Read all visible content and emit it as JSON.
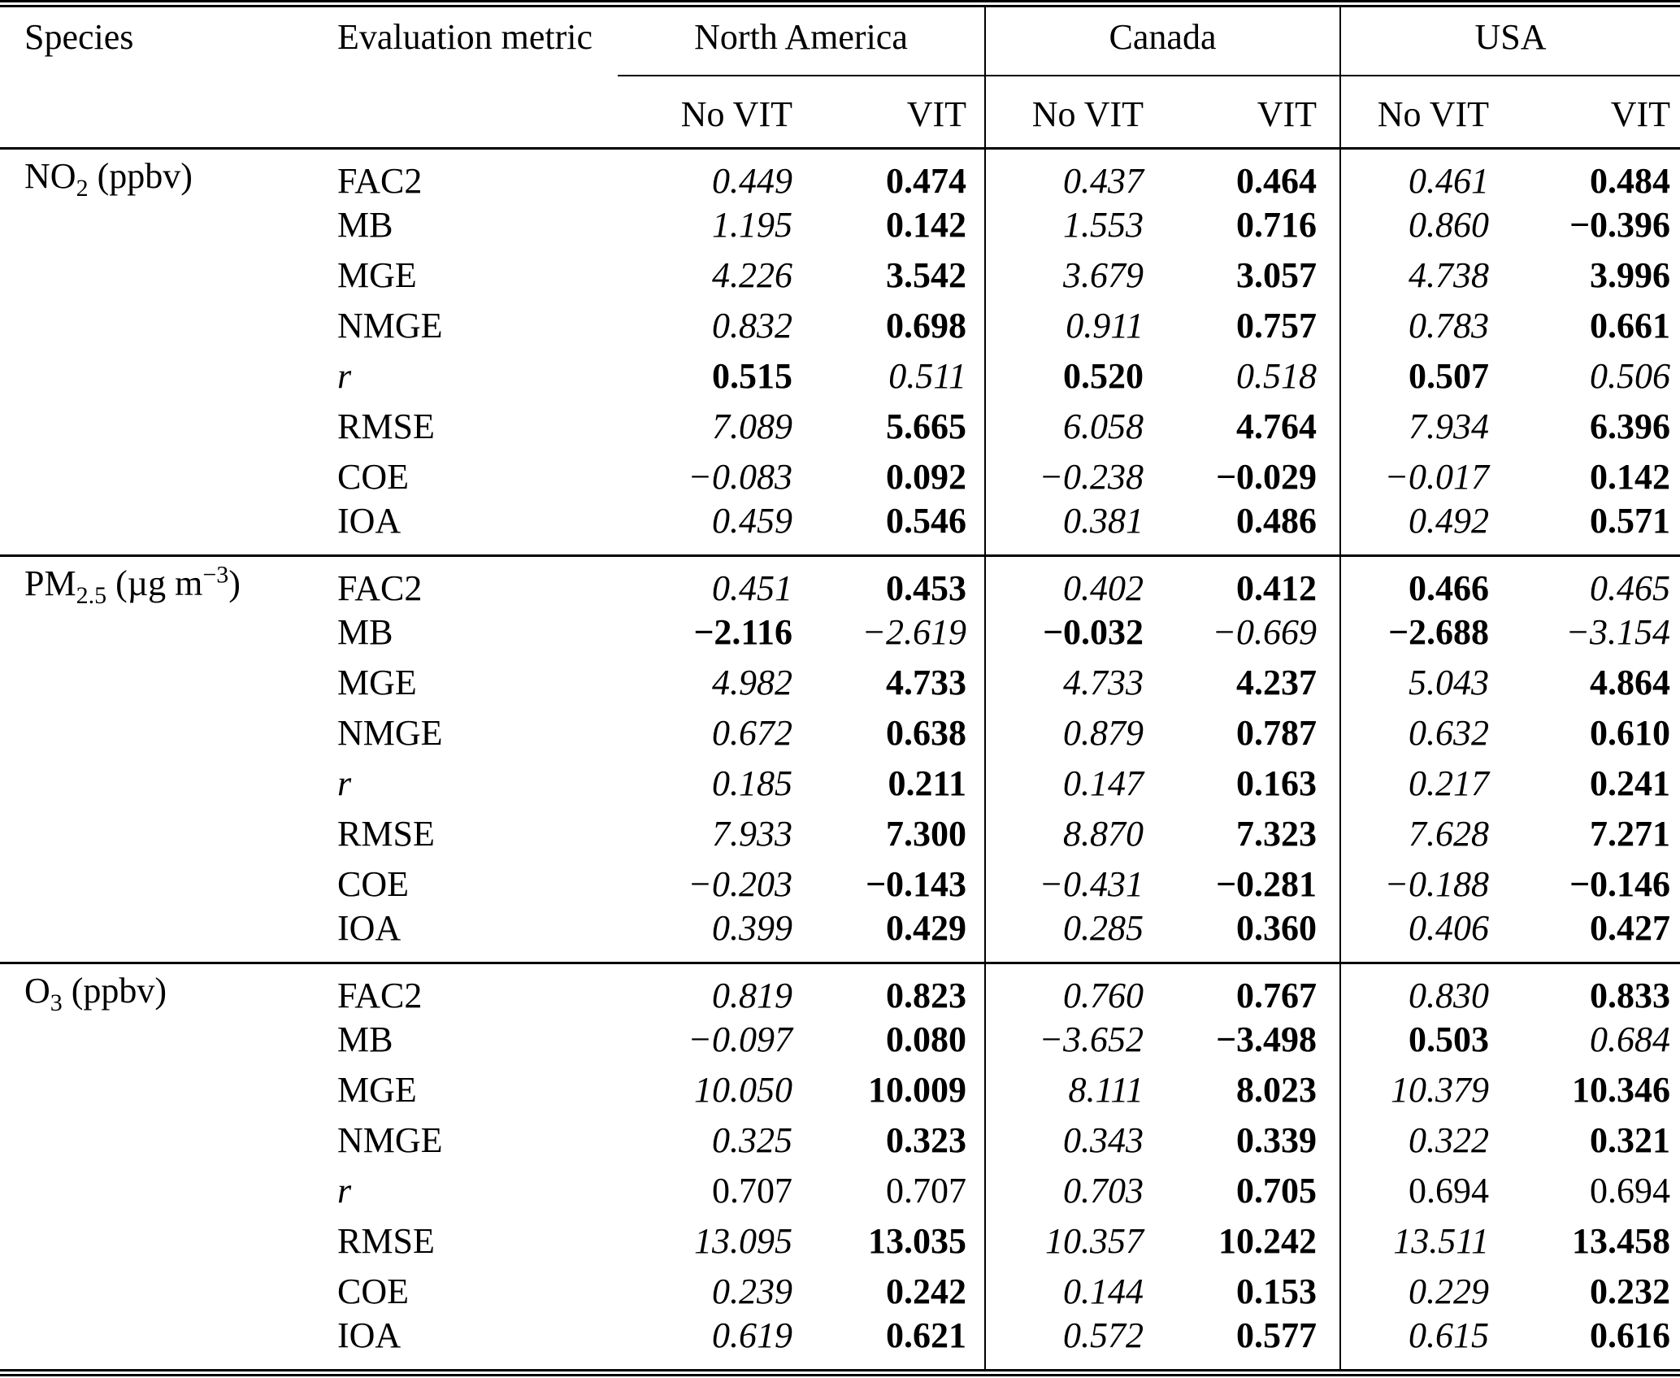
{
  "colors": {
    "text": "#000000",
    "background": "#ffffff"
  },
  "table": {
    "header": {
      "species": "Species",
      "metric": "Evaluation metric"
    },
    "groups": [
      {
        "label": "North America"
      },
      {
        "label": "Canada"
      },
      {
        "label": "USA"
      }
    ],
    "subheaders": {
      "no_vit": "No VIT",
      "vit": "VIT"
    },
    "sections": [
      {
        "species": {
          "base": "NO",
          "sub": "2",
          "unit_pre": " (ppbv)",
          "sup": "",
          "unit_post": ""
        },
        "rows": [
          {
            "metric": "FAC2",
            "metric_style": "n",
            "cells": [
              {
                "v": "0.449",
                "s": "i"
              },
              {
                "v": "0.474",
                "s": "b"
              },
              {
                "v": "0.437",
                "s": "i"
              },
              {
                "v": "0.464",
                "s": "b"
              },
              {
                "v": "0.461",
                "s": "i"
              },
              {
                "v": "0.484",
                "s": "b"
              }
            ]
          },
          {
            "metric": "MB",
            "metric_style": "n",
            "cells": [
              {
                "v": "1.195",
                "s": "i"
              },
              {
                "v": "0.142",
                "s": "b"
              },
              {
                "v": "1.553",
                "s": "i"
              },
              {
                "v": "0.716",
                "s": "b"
              },
              {
                "v": "0.860",
                "s": "i"
              },
              {
                "v": "−0.396",
                "s": "b"
              }
            ]
          },
          {
            "metric": "MGE",
            "metric_style": "n",
            "cells": [
              {
                "v": "4.226",
                "s": "i"
              },
              {
                "v": "3.542",
                "s": "b"
              },
              {
                "v": "3.679",
                "s": "i"
              },
              {
                "v": "3.057",
                "s": "b"
              },
              {
                "v": "4.738",
                "s": "i"
              },
              {
                "v": "3.996",
                "s": "b"
              }
            ]
          },
          {
            "metric": "NMGE",
            "metric_style": "n",
            "cells": [
              {
                "v": "0.832",
                "s": "i"
              },
              {
                "v": "0.698",
                "s": "b"
              },
              {
                "v": "0.911",
                "s": "i"
              },
              {
                "v": "0.757",
                "s": "b"
              },
              {
                "v": "0.783",
                "s": "i"
              },
              {
                "v": "0.661",
                "s": "b"
              }
            ]
          },
          {
            "metric": "r",
            "metric_style": "i",
            "cells": [
              {
                "v": "0.515",
                "s": "b"
              },
              {
                "v": "0.511",
                "s": "i"
              },
              {
                "v": "0.520",
                "s": "b"
              },
              {
                "v": "0.518",
                "s": "i"
              },
              {
                "v": "0.507",
                "s": "b"
              },
              {
                "v": "0.506",
                "s": "i"
              }
            ]
          },
          {
            "metric": "RMSE",
            "metric_style": "n",
            "cells": [
              {
                "v": "7.089",
                "s": "i"
              },
              {
                "v": "5.665",
                "s": "b"
              },
              {
                "v": "6.058",
                "s": "i"
              },
              {
                "v": "4.764",
                "s": "b"
              },
              {
                "v": "7.934",
                "s": "i"
              },
              {
                "v": "6.396",
                "s": "b"
              }
            ]
          },
          {
            "metric": "COE",
            "metric_style": "n",
            "cells": [
              {
                "v": "−0.083",
                "s": "i"
              },
              {
                "v": "0.092",
                "s": "b"
              },
              {
                "v": "−0.238",
                "s": "i"
              },
              {
                "v": "−0.029",
                "s": "b"
              },
              {
                "v": "−0.017",
                "s": "i"
              },
              {
                "v": "0.142",
                "s": "b"
              }
            ]
          },
          {
            "metric": "IOA",
            "metric_style": "n",
            "cells": [
              {
                "v": "0.459",
                "s": "i"
              },
              {
                "v": "0.546",
                "s": "b"
              },
              {
                "v": "0.381",
                "s": "i"
              },
              {
                "v": "0.486",
                "s": "b"
              },
              {
                "v": "0.492",
                "s": "i"
              },
              {
                "v": "0.571",
                "s": "b"
              }
            ]
          }
        ]
      },
      {
        "species": {
          "base": "PM",
          "sub": "2.5",
          "unit_pre": " (µg m",
          "sup": "−3",
          "unit_post": ")"
        },
        "rows": [
          {
            "metric": "FAC2",
            "metric_style": "n",
            "cells": [
              {
                "v": "0.451",
                "s": "i"
              },
              {
                "v": "0.453",
                "s": "b"
              },
              {
                "v": "0.402",
                "s": "i"
              },
              {
                "v": "0.412",
                "s": "b"
              },
              {
                "v": "0.466",
                "s": "b"
              },
              {
                "v": "0.465",
                "s": "i"
              }
            ]
          },
          {
            "metric": "MB",
            "metric_style": "n",
            "cells": [
              {
                "v": "−2.116",
                "s": "b"
              },
              {
                "v": "−2.619",
                "s": "i"
              },
              {
                "v": "−0.032",
                "s": "b"
              },
              {
                "v": "−0.669",
                "s": "i"
              },
              {
                "v": "−2.688",
                "s": "b"
              },
              {
                "v": "−3.154",
                "s": "i"
              }
            ]
          },
          {
            "metric": "MGE",
            "metric_style": "n",
            "cells": [
              {
                "v": "4.982",
                "s": "i"
              },
              {
                "v": "4.733",
                "s": "b"
              },
              {
                "v": "4.733",
                "s": "i"
              },
              {
                "v": "4.237",
                "s": "b"
              },
              {
                "v": "5.043",
                "s": "i"
              },
              {
                "v": "4.864",
                "s": "b"
              }
            ]
          },
          {
            "metric": "NMGE",
            "metric_style": "n",
            "cells": [
              {
                "v": "0.672",
                "s": "i"
              },
              {
                "v": "0.638",
                "s": "b"
              },
              {
                "v": "0.879",
                "s": "i"
              },
              {
                "v": "0.787",
                "s": "b"
              },
              {
                "v": "0.632",
                "s": "i"
              },
              {
                "v": "0.610",
                "s": "b"
              }
            ]
          },
          {
            "metric": "r",
            "metric_style": "i",
            "cells": [
              {
                "v": "0.185",
                "s": "i"
              },
              {
                "v": "0.211",
                "s": "b"
              },
              {
                "v": "0.147",
                "s": "i"
              },
              {
                "v": "0.163",
                "s": "b"
              },
              {
                "v": "0.217",
                "s": "i"
              },
              {
                "v": "0.241",
                "s": "b"
              }
            ]
          },
          {
            "metric": "RMSE",
            "metric_style": "n",
            "cells": [
              {
                "v": "7.933",
                "s": "i"
              },
              {
                "v": "7.300",
                "s": "b"
              },
              {
                "v": "8.870",
                "s": "i"
              },
              {
                "v": "7.323",
                "s": "b"
              },
              {
                "v": "7.628",
                "s": "i"
              },
              {
                "v": "7.271",
                "s": "b"
              }
            ]
          },
          {
            "metric": "COE",
            "metric_style": "n",
            "cells": [
              {
                "v": "−0.203",
                "s": "i"
              },
              {
                "v": "−0.143",
                "s": "b"
              },
              {
                "v": "−0.431",
                "s": "i"
              },
              {
                "v": "−0.281",
                "s": "b"
              },
              {
                "v": "−0.188",
                "s": "i"
              },
              {
                "v": "−0.146",
                "s": "b"
              }
            ]
          },
          {
            "metric": "IOA",
            "metric_style": "n",
            "cells": [
              {
                "v": "0.399",
                "s": "i"
              },
              {
                "v": "0.429",
                "s": "b"
              },
              {
                "v": "0.285",
                "s": "i"
              },
              {
                "v": "0.360",
                "s": "b"
              },
              {
                "v": "0.406",
                "s": "i"
              },
              {
                "v": "0.427",
                "s": "b"
              }
            ]
          }
        ]
      },
      {
        "species": {
          "base": "O",
          "sub": "3",
          "unit_pre": " (ppbv)",
          "sup": "",
          "unit_post": ""
        },
        "rows": [
          {
            "metric": "FAC2",
            "metric_style": "n",
            "cells": [
              {
                "v": "0.819",
                "s": "i"
              },
              {
                "v": "0.823",
                "s": "b"
              },
              {
                "v": "0.760",
                "s": "i"
              },
              {
                "v": "0.767",
                "s": "b"
              },
              {
                "v": "0.830",
                "s": "i"
              },
              {
                "v": "0.833",
                "s": "b"
              }
            ]
          },
          {
            "metric": "MB",
            "metric_style": "n",
            "cells": [
              {
                "v": "−0.097",
                "s": "i"
              },
              {
                "v": "0.080",
                "s": "b"
              },
              {
                "v": "−3.652",
                "s": "i"
              },
              {
                "v": "−3.498",
                "s": "b"
              },
              {
                "v": "0.503",
                "s": "b"
              },
              {
                "v": "0.684",
                "s": "i"
              }
            ]
          },
          {
            "metric": "MGE",
            "metric_style": "n",
            "cells": [
              {
                "v": "10.050",
                "s": "i"
              },
              {
                "v": "10.009",
                "s": "b"
              },
              {
                "v": "8.111",
                "s": "i"
              },
              {
                "v": "8.023",
                "s": "b"
              },
              {
                "v": "10.379",
                "s": "i"
              },
              {
                "v": "10.346",
                "s": "b"
              }
            ]
          },
          {
            "metric": "NMGE",
            "metric_style": "n",
            "cells": [
              {
                "v": "0.325",
                "s": "i"
              },
              {
                "v": "0.323",
                "s": "b"
              },
              {
                "v": "0.343",
                "s": "i"
              },
              {
                "v": "0.339",
                "s": "b"
              },
              {
                "v": "0.322",
                "s": "i"
              },
              {
                "v": "0.321",
                "s": "b"
              }
            ]
          },
          {
            "metric": "r",
            "metric_style": "i",
            "cells": [
              {
                "v": "0.707",
                "s": "n"
              },
              {
                "v": "0.707",
                "s": "n"
              },
              {
                "v": "0.703",
                "s": "i"
              },
              {
                "v": "0.705",
                "s": "b"
              },
              {
                "v": "0.694",
                "s": "n"
              },
              {
                "v": "0.694",
                "s": "n"
              }
            ]
          },
          {
            "metric": "RMSE",
            "metric_style": "n",
            "cells": [
              {
                "v": "13.095",
                "s": "i"
              },
              {
                "v": "13.035",
                "s": "b"
              },
              {
                "v": "10.357",
                "s": "i"
              },
              {
                "v": "10.242",
                "s": "b"
              },
              {
                "v": "13.511",
                "s": "i"
              },
              {
                "v": "13.458",
                "s": "b"
              }
            ]
          },
          {
            "metric": "COE",
            "metric_style": "n",
            "cells": [
              {
                "v": "0.239",
                "s": "i"
              },
              {
                "v": "0.242",
                "s": "b"
              },
              {
                "v": "0.144",
                "s": "i"
              },
              {
                "v": "0.153",
                "s": "b"
              },
              {
                "v": "0.229",
                "s": "i"
              },
              {
                "v": "0.232",
                "s": "b"
              }
            ]
          },
          {
            "metric": "IOA",
            "metric_style": "n",
            "cells": [
              {
                "v": "0.619",
                "s": "i"
              },
              {
                "v": "0.621",
                "s": "b"
              },
              {
                "v": "0.572",
                "s": "i"
              },
              {
                "v": "0.577",
                "s": "b"
              },
              {
                "v": "0.615",
                "s": "i"
              },
              {
                "v": "0.616",
                "s": "b"
              }
            ]
          }
        ]
      }
    ]
  }
}
